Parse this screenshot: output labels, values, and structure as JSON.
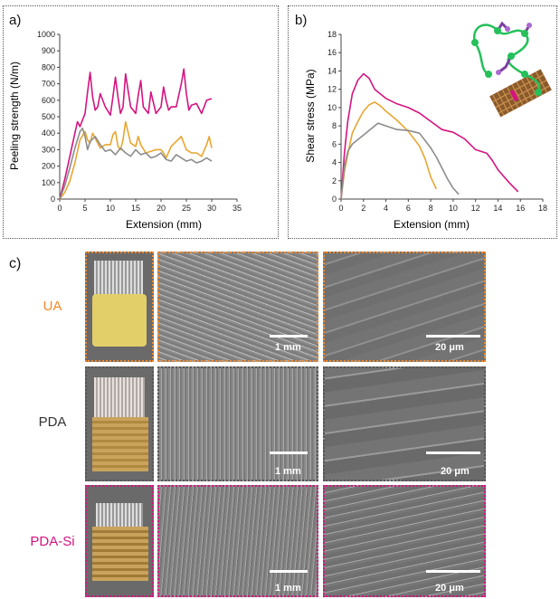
{
  "panels": {
    "a": "a)",
    "b": "b)",
    "c": "c)"
  },
  "chart_data": [
    {
      "type": "line",
      "xlabel": "Extension (mm)",
      "ylabel": "Peeling strength (N/m)",
      "xlim": [
        0,
        35
      ],
      "ylim": [
        0,
        1000
      ],
      "xticks": [
        "0",
        "5",
        "10",
        "15",
        "20",
        "25",
        "30",
        "35"
      ],
      "yticks": [
        "0",
        "100",
        "200",
        "300",
        "400",
        "500",
        "600",
        "700",
        "800",
        "900",
        "1000"
      ],
      "grid": false,
      "series": [
        {
          "color": "#d4147f",
          "x": [
            0,
            1,
            2,
            3,
            3.5,
            4,
            5,
            5.5,
            6,
            6.5,
            7,
            7.5,
            8,
            9,
            10,
            10.5,
            11,
            11.5,
            12,
            12.5,
            13,
            14,
            15,
            15.5,
            16,
            16.5,
            17,
            17.5,
            18,
            19,
            20,
            20.5,
            21,
            21.5,
            22,
            23,
            24,
            24.5,
            25,
            25.5,
            26,
            27,
            28,
            29,
            30
          ],
          "y": [
            0,
            120,
            260,
            400,
            470,
            440,
            520,
            650,
            770,
            620,
            540,
            560,
            640,
            560,
            510,
            620,
            740,
            620,
            520,
            560,
            760,
            560,
            520,
            630,
            720,
            560,
            540,
            520,
            650,
            520,
            560,
            680,
            600,
            540,
            560,
            560,
            700,
            790,
            640,
            540,
            570,
            580,
            520,
            600,
            610
          ]
        },
        {
          "color": "#e8a631",
          "x": [
            0,
            1,
            2,
            3,
            4,
            5,
            5.5,
            6,
            6.5,
            7,
            8,
            9,
            10,
            10.5,
            11,
            11.5,
            12,
            12.5,
            13,
            14,
            15,
            15.5,
            16,
            17,
            18,
            19,
            20,
            20.5,
            21,
            22,
            23,
            24,
            25,
            26,
            27,
            28,
            29,
            29.5,
            30
          ],
          "y": [
            0,
            40,
            110,
            220,
            360,
            410,
            360,
            340,
            400,
            370,
            310,
            330,
            330,
            390,
            410,
            320,
            300,
            360,
            470,
            340,
            320,
            380,
            330,
            280,
            290,
            300,
            300,
            280,
            250,
            320,
            350,
            380,
            300,
            280,
            280,
            260,
            330,
            380,
            310
          ]
        },
        {
          "color": "#8c8c8c",
          "x": [
            0,
            1,
            2,
            3,
            4,
            4.5,
            5,
            5.5,
            6,
            7,
            8,
            9,
            10,
            11,
            12,
            13,
            14,
            15,
            16,
            17,
            18,
            19,
            20,
            21,
            22,
            23,
            24,
            25,
            26,
            27,
            28,
            29,
            30
          ],
          "y": [
            0,
            80,
            190,
            310,
            410,
            430,
            380,
            300,
            350,
            380,
            330,
            290,
            300,
            270,
            310,
            280,
            260,
            300,
            270,
            280,
            250,
            260,
            280,
            240,
            230,
            270,
            250,
            230,
            240,
            220,
            230,
            250,
            230
          ]
        }
      ]
    },
    {
      "type": "line",
      "xlabel": "Extension (mm)",
      "ylabel": "Shear stress (MPa)",
      "xlim": [
        0,
        18
      ],
      "ylim": [
        0,
        18
      ],
      "xticks": [
        "0",
        "2",
        "4",
        "6",
        "8",
        "10",
        "12",
        "14",
        "16",
        "18"
      ],
      "yticks": [
        "0",
        "2",
        "4",
        "6",
        "8",
        "10",
        "12",
        "14",
        "16",
        "18"
      ],
      "grid": false,
      "series": [
        {
          "color": "#d4147f",
          "x": [
            0,
            0.3,
            0.6,
            1,
            1.5,
            2,
            2.5,
            3,
            4,
            5,
            6,
            7,
            8,
            9,
            10,
            11,
            12,
            12.5,
            13,
            13.5,
            14,
            15,
            15.8
          ],
          "y": [
            0,
            5,
            8.5,
            11.5,
            13,
            13.7,
            13.2,
            12,
            11,
            10.4,
            10,
            9.4,
            8.5,
            7.6,
            7.3,
            6.6,
            5.4,
            5.2,
            5.0,
            4.2,
            3.2,
            1.8,
            0.8
          ]
        },
        {
          "color": "#e8a631",
          "x": [
            0,
            0.3,
            0.7,
            1,
            1.5,
            2,
            2.5,
            3,
            3.5,
            4,
            5,
            6,
            7,
            7.5,
            8,
            8.5
          ],
          "y": [
            0,
            3,
            5.5,
            7.2,
            8.5,
            9.6,
            10.3,
            10.6,
            10.2,
            9.6,
            8.6,
            7.4,
            5.8,
            4.4,
            2.4,
            1.1
          ]
        },
        {
          "color": "#8c8c8c",
          "x": [
            0,
            0.3,
            0.6,
            1,
            2,
            3,
            3.3,
            4,
            5,
            6,
            7,
            8,
            8.5,
            9,
            9.5,
            10,
            10.5
          ],
          "y": [
            0,
            3.5,
            5.2,
            6.0,
            7.0,
            8.0,
            8.3,
            8.0,
            7.6,
            7.5,
            7.2,
            5.6,
            4.6,
            3.4,
            2.2,
            1.2,
            0.5
          ]
        }
      ]
    }
  ],
  "images": {
    "rows": [
      {
        "label": "UA",
        "color": "#f0882b",
        "scale_mid": "1 mm",
        "scale_right": "20 μm"
      },
      {
        "label": "PDA",
        "color": "#333333",
        "scale_mid": "1 mm",
        "scale_right": "20 μm"
      },
      {
        "label": "PDA-Si",
        "color": "#d4147f",
        "scale_mid": "1 mm",
        "scale_right": "20 μm"
      }
    ]
  }
}
